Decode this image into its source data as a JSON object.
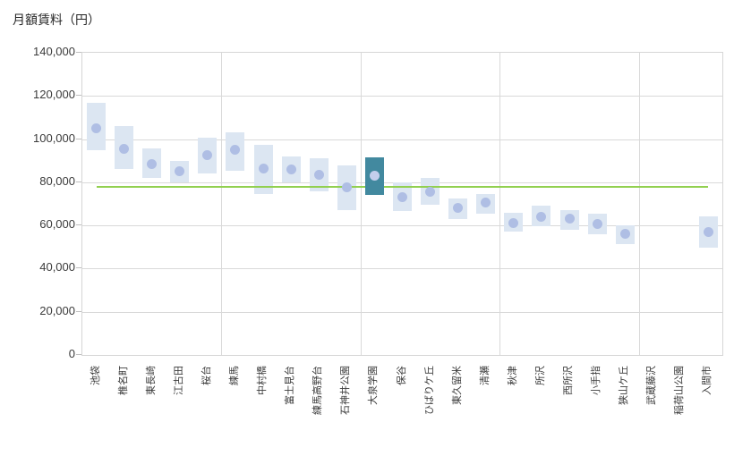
{
  "title": "月額賃料（円）",
  "colors": {
    "bar": "#dce6f2",
    "bar_highlight": "#42899f",
    "dot": "#afbee4",
    "dot_on_highlight": "#c4ceec",
    "reference_line": "#92d050",
    "gridline": "#d9d9d9",
    "axis_text": "#3b3b3b"
  },
  "chart_data": {
    "type": "bar",
    "subtype": "floating-range-bars-with-median-dots",
    "title": "月額賃料（円）",
    "ylabel": "月額賃料（円）",
    "xlabel": "",
    "ylim": [
      0,
      140000
    ],
    "ytick_interval": 20000,
    "ytick_labels": [
      "0",
      "20,000",
      "40,000",
      "60,000",
      "80,000",
      "100,000",
      "120,000",
      "140,000"
    ],
    "grid": {
      "horizontal": true,
      "vertical_every_n_categories": 5
    },
    "legend": "none",
    "reference_line": {
      "value": 78000,
      "label": "",
      "color": "#92d050"
    },
    "highlighted_category": "大泉学園",
    "categories": [
      "池袋",
      "椎名町",
      "東長崎",
      "江古田",
      "桜台",
      "練馬",
      "中村橋",
      "富士見台",
      "練馬高野台",
      "石神井公園",
      "大泉学園",
      "保谷",
      "ひばりケ丘",
      "東久留米",
      "清瀬",
      "秋津",
      "所沢",
      "西所沢",
      "小手指",
      "狭山ケ丘",
      "武蔵藤沢",
      "稲荷山公園",
      "入間市"
    ],
    "series": [
      {
        "name": "range_low",
        "values": [
          95000,
          86000,
          82000,
          80000,
          84000,
          85500,
          74500,
          80000,
          76000,
          67000,
          74000,
          66500,
          69500,
          63000,
          65500,
          57000,
          59500,
          58000,
          56000,
          51500,
          null,
          null,
          49500
        ]
      },
      {
        "name": "range_high",
        "values": [
          117000,
          106000,
          95500,
          90000,
          100500,
          103000,
          97500,
          92000,
          91000,
          88000,
          91500,
          80000,
          82000,
          72500,
          74500,
          66000,
          69000,
          67000,
          65500,
          60000,
          null,
          null,
          64000
        ]
      },
      {
        "name": "median",
        "values": [
          105000,
          95500,
          88500,
          85000,
          92500,
          95000,
          86500,
          86000,
          83500,
          77500,
          83000,
          73000,
          75500,
          68000,
          70500,
          61000,
          64000,
          63000,
          60500,
          56000,
          null,
          null,
          57000
        ]
      }
    ]
  }
}
